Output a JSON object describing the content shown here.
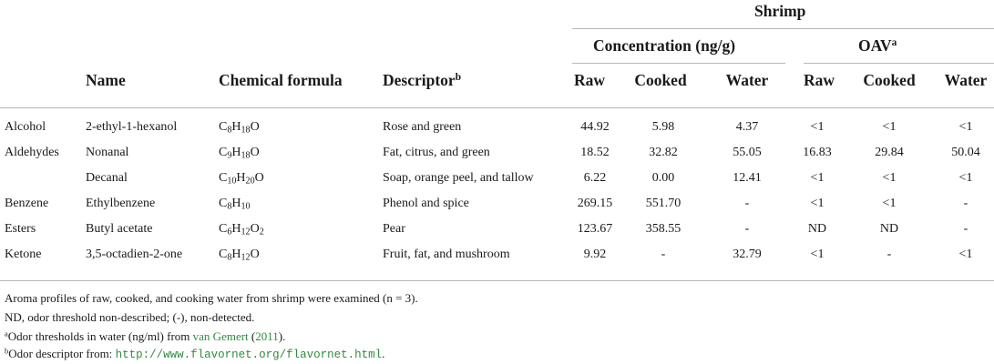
{
  "header": {
    "group": "Shrimp",
    "concentration": "Concentration (ng/g)",
    "oav": "OAV",
    "oav_sup": "a",
    "name": "Name",
    "formula": "Chemical formula",
    "descriptor": "Descriptor",
    "descriptor_sup": "b",
    "conc_cols": [
      "Raw",
      "Cooked",
      "Water"
    ],
    "oav_cols": [
      "Raw",
      "Cooked",
      "Water"
    ]
  },
  "rows": [
    {
      "category": "Alcohol",
      "name": "2-ethyl-1-hexanol",
      "formula": "C8H18O",
      "descriptor": "Rose and green",
      "conc": [
        "44.92",
        "5.98",
        "4.37"
      ],
      "oav": [
        "<1",
        "<1",
        "<1"
      ]
    },
    {
      "category": "Aldehydes",
      "name": "Nonanal",
      "formula": "C9H18O",
      "descriptor": "Fat, citrus, and green",
      "conc": [
        "18.52",
        "32.82",
        "55.05"
      ],
      "oav": [
        "16.83",
        "29.84",
        "50.04"
      ]
    },
    {
      "category": "",
      "name": "Decanal",
      "formula": "C10H20O",
      "descriptor": "Soap, orange peel, and tallow",
      "conc": [
        "6.22",
        "0.00",
        "12.41"
      ],
      "oav": [
        "<1",
        "<1",
        "<1"
      ]
    },
    {
      "category": "Benzene",
      "name": "Ethylbenzene",
      "formula": "C8H10",
      "descriptor": "Phenol and spice",
      "conc": [
        "269.15",
        "551.70",
        "-"
      ],
      "oav": [
        "<1",
        "<1",
        "-"
      ]
    },
    {
      "category": "Esters",
      "name": "Butyl acetate",
      "formula": "C6H12O2",
      "descriptor": "Pear",
      "conc": [
        "123.67",
        "358.55",
        "-"
      ],
      "oav": [
        "ND",
        "ND",
        "-"
      ]
    },
    {
      "category": "Ketone",
      "name": "3,5-octadien-2-one",
      "formula": "C8H12O",
      "descriptor": "Fruit, fat, and mushroom",
      "conc": [
        "9.92",
        "-",
        "32.79"
      ],
      "oav": [
        "<1",
        "-",
        "<1"
      ]
    }
  ],
  "notes": {
    "n1": "Aroma profiles of raw, cooked, and cooking water from shrimp were examined (n = 3).",
    "n2": "ND, odor threshold non-described; (-), non-detected.",
    "n3_sup": "a",
    "n3_pre": "Odor thresholds in water (ng/ml) from ",
    "n3_author": "van Gemert",
    "n3_year": "2011",
    "n3_mid": " (",
    "n3_post": ").",
    "n4_sup": "b",
    "n4_pre": "Odor descriptor from: ",
    "n4_link": "http://www.flavornet.org/flavornet.html",
    "n4_post": "."
  },
  "colors": {
    "rule": "#b8b8b8",
    "link": "#2e8b3d",
    "text": "#1a1a1a"
  }
}
